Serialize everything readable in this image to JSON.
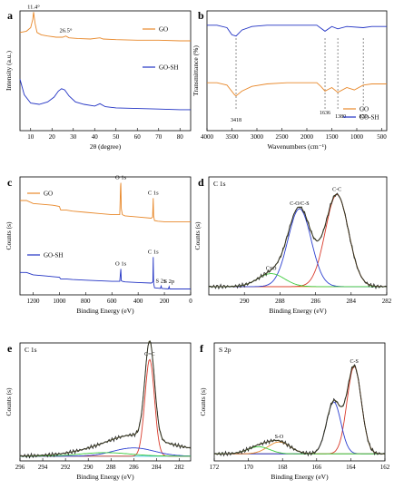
{
  "chart_data": [
    {
      "id": "a",
      "panel_letter": "a",
      "type": "line",
      "xlabel": "2θ (degree)",
      "ylabel": "Intensity (a.u.)",
      "xlim": [
        5,
        85
      ],
      "xticks": [
        10,
        20,
        30,
        40,
        50,
        60,
        70,
        80
      ],
      "legend_position": "right",
      "series": [
        {
          "name": "GO",
          "color": "#E8882A",
          "x": [
            5,
            8,
            10,
            11,
            11.4,
            12,
            13,
            15,
            18,
            22,
            25,
            26.5,
            28,
            32,
            38,
            42.5,
            44,
            50,
            60,
            70,
            80,
            85
          ],
          "y": [
            0.82,
            0.83,
            0.86,
            0.93,
            0.99,
            0.9,
            0.82,
            0.8,
            0.79,
            0.78,
            0.78,
            0.79,
            0.775,
            0.77,
            0.765,
            0.775,
            0.765,
            0.76,
            0.755,
            0.755,
            0.75,
            0.75
          ]
        },
        {
          "name": "GO-SH",
          "color": "#2233C4",
          "x": [
            5,
            7,
            10,
            14,
            18,
            21,
            23,
            24.5,
            26,
            28,
            31,
            35,
            40,
            42.5,
            45,
            50,
            60,
            70,
            80,
            85
          ],
          "y": [
            0.43,
            0.3,
            0.23,
            0.22,
            0.24,
            0.28,
            0.33,
            0.35,
            0.34,
            0.29,
            0.24,
            0.22,
            0.205,
            0.225,
            0.2,
            0.19,
            0.185,
            0.18,
            0.175,
            0.175
          ]
        }
      ],
      "annotations": [
        {
          "text": "11.4°",
          "x": 11.4,
          "y": 0.99
        },
        {
          "text": "26.5°",
          "x": 26.5,
          "y": 0.79
        }
      ]
    },
    {
      "id": "b",
      "panel_letter": "b",
      "type": "line",
      "xlabel": "Wavenumbers (cm⁻¹)",
      "ylabel": "Transmittance (%)",
      "xlim": [
        4000,
        400
      ],
      "xticks": [
        4000,
        3500,
        3000,
        2500,
        2000,
        1500,
        1000,
        500
      ],
      "legend_position": "bottom-right",
      "series": [
        {
          "name": "GO",
          "color": "#E8882A",
          "x": [
            4000,
            3800,
            3600,
            3450,
            3418,
            3300,
            3100,
            2800,
            2400,
            2000,
            1800,
            1720,
            1636,
            1500,
            1380,
            1200,
            1050,
            870,
            700,
            500,
            400
          ],
          "y": [
            0.4,
            0.4,
            0.38,
            0.3,
            0.29,
            0.33,
            0.37,
            0.39,
            0.4,
            0.4,
            0.4,
            0.37,
            0.33,
            0.36,
            0.32,
            0.36,
            0.34,
            0.38,
            0.39,
            0.39,
            0.39
          ]
        },
        {
          "name": "GO-SH",
          "color": "#2233C4",
          "x": [
            4000,
            3800,
            3600,
            3500,
            3418,
            3300,
            3100,
            2800,
            2400,
            2000,
            1800,
            1636,
            1500,
            1380,
            1200,
            870,
            700,
            500,
            400
          ],
          "y": [
            0.88,
            0.88,
            0.86,
            0.8,
            0.79,
            0.84,
            0.87,
            0.88,
            0.88,
            0.88,
            0.88,
            0.83,
            0.87,
            0.85,
            0.87,
            0.86,
            0.87,
            0.87,
            0.87
          ]
        }
      ],
      "markers": [
        {
          "x": 3418,
          "label": "3418"
        },
        {
          "x": 1636,
          "label": "1636"
        },
        {
          "x": 1380,
          "label": "1380"
        },
        {
          "x": 870,
          "label": "870"
        }
      ]
    },
    {
      "id": "c",
      "panel_letter": "c",
      "type": "line",
      "xlabel": "Binding Energy (eV)",
      "ylabel": "Counts (s)",
      "xlim": [
        1300,
        0
      ],
      "xticks": [
        1200,
        1000,
        800,
        600,
        400,
        200,
        0
      ],
      "legend_position": "left",
      "series": [
        {
          "name": "GO",
          "color": "#E8882A",
          "x": [
            1300,
            1250,
            1200,
            1150,
            1100,
            1050,
            1000,
            990,
            950,
            900,
            800,
            700,
            600,
            540,
            534,
            532,
            528,
            520,
            500,
            400,
            300,
            290,
            285,
            282,
            275,
            250,
            200,
            100,
            0
          ],
          "y": [
            0.8,
            0.8,
            0.775,
            0.77,
            0.765,
            0.76,
            0.75,
            0.72,
            0.72,
            0.71,
            0.7,
            0.69,
            0.68,
            0.68,
            0.92,
            0.95,
            0.73,
            0.68,
            0.67,
            0.66,
            0.65,
            0.66,
            0.82,
            0.67,
            0.63,
            0.625,
            0.62,
            0.62,
            0.62
          ]
        },
        {
          "name": "GO-SH",
          "color": "#2233C4",
          "x": [
            1300,
            1250,
            1200,
            1150,
            1100,
            1050,
            1000,
            990,
            950,
            900,
            800,
            700,
            600,
            540,
            532,
            528,
            520,
            500,
            400,
            300,
            288,
            285,
            282,
            275,
            230,
            225,
            220,
            170,
            164,
            160,
            100,
            0
          ],
          "y": [
            0.19,
            0.19,
            0.17,
            0.165,
            0.16,
            0.155,
            0.15,
            0.135,
            0.135,
            0.13,
            0.125,
            0.12,
            0.115,
            0.115,
            0.22,
            0.12,
            0.115,
            0.11,
            0.105,
            0.1,
            0.11,
            0.32,
            0.1,
            0.06,
            0.055,
            0.075,
            0.055,
            0.05,
            0.07,
            0.05,
            0.05,
            0.05
          ]
        }
      ],
      "annotations": [
        {
          "text": "O 1s",
          "x": 532,
          "y": 0.95
        },
        {
          "text": "C 1s",
          "x": 285,
          "y": 0.82
        },
        {
          "text": "C 1s",
          "x": 285,
          "y": 0.32
        },
        {
          "text": "O 1s",
          "x": 532,
          "y": 0.22
        },
        {
          "text": "S 2s",
          "x": 228,
          "y": 0.075
        },
        {
          "text": "S 2p",
          "x": 164,
          "y": 0.07
        }
      ]
    },
    {
      "id": "d",
      "panel_letter": "d",
      "type": "line",
      "title": "C 1s",
      "xlabel": "Binding Energy (eV)",
      "ylabel": "Counts (s)",
      "xlim": [
        292,
        282
      ],
      "xticks": [
        290,
        288,
        286,
        284,
        282
      ],
      "baseline": 0.07,
      "fit_peaks": [
        {
          "label": "C-C",
          "color": "#D93A2B",
          "center": 284.8,
          "height": 0.78,
          "width": 0.65
        },
        {
          "label": "C-O/C-S",
          "color": "#2C3FD0",
          "center": 286.9,
          "height": 0.66,
          "width": 0.65
        },
        {
          "label": "C=O",
          "color": "#3CCB3C",
          "center": 288.5,
          "height": 0.11,
          "width": 0.75
        }
      ],
      "envelope_color": "#5A5A2A",
      "raw_color": "#222222",
      "background_color": "#E8882A"
    },
    {
      "id": "e",
      "panel_letter": "e",
      "type": "line",
      "title": "C 1s",
      "xlabel": "Binding Energy (eV)",
      "ylabel": "Counts (s)",
      "xlim": [
        296,
        281
      ],
      "xticks": [
        296,
        294,
        292,
        290,
        288,
        286,
        284,
        282
      ],
      "baseline": 0.04,
      "fit_peaks": [
        {
          "label": "C=C",
          "color": "#D93A2B",
          "center": 284.6,
          "height": 0.82,
          "width": 0.42
        },
        {
          "label": "",
          "color": "#2C3FD0",
          "center": 286.0,
          "height": 0.07,
          "width": 1.8
        },
        {
          "label": "",
          "color": "#3CCB3C",
          "center": 288.5,
          "height": 0.03,
          "width": 2.2
        }
      ],
      "tail": {
        "center": 284.6,
        "height": 0.1,
        "width": 4.0
      },
      "envelope_color": "#5A5A2A",
      "raw_color": "#222222",
      "background_color": "#21B6D6"
    },
    {
      "id": "f",
      "panel_letter": "f",
      "type": "line",
      "title": "S 2p",
      "xlabel": "Binding Energy (eV)",
      "ylabel": "Counts (s)",
      "xlim": [
        172,
        162
      ],
      "xticks": [
        172,
        170,
        168,
        166,
        164,
        162
      ],
      "baseline": 0.06,
      "fit_peaks": [
        {
          "label": "C-S",
          "color": "#D93A2B",
          "center": 163.8,
          "height": 0.74,
          "width": 0.42
        },
        {
          "label": "",
          "color": "#2C3FD0",
          "center": 165.0,
          "height": 0.44,
          "width": 0.42
        },
        {
          "label": "S-O",
          "color": "#E8882A",
          "center": 168.2,
          "height": 0.1,
          "width": 0.65
        },
        {
          "label": "",
          "color": "#3CCB3C",
          "center": 169.4,
          "height": 0.06,
          "width": 0.65
        }
      ],
      "envelope_color": "#5A5A2A",
      "raw_color": "#222222",
      "background_color": "#21B6D6"
    }
  ]
}
